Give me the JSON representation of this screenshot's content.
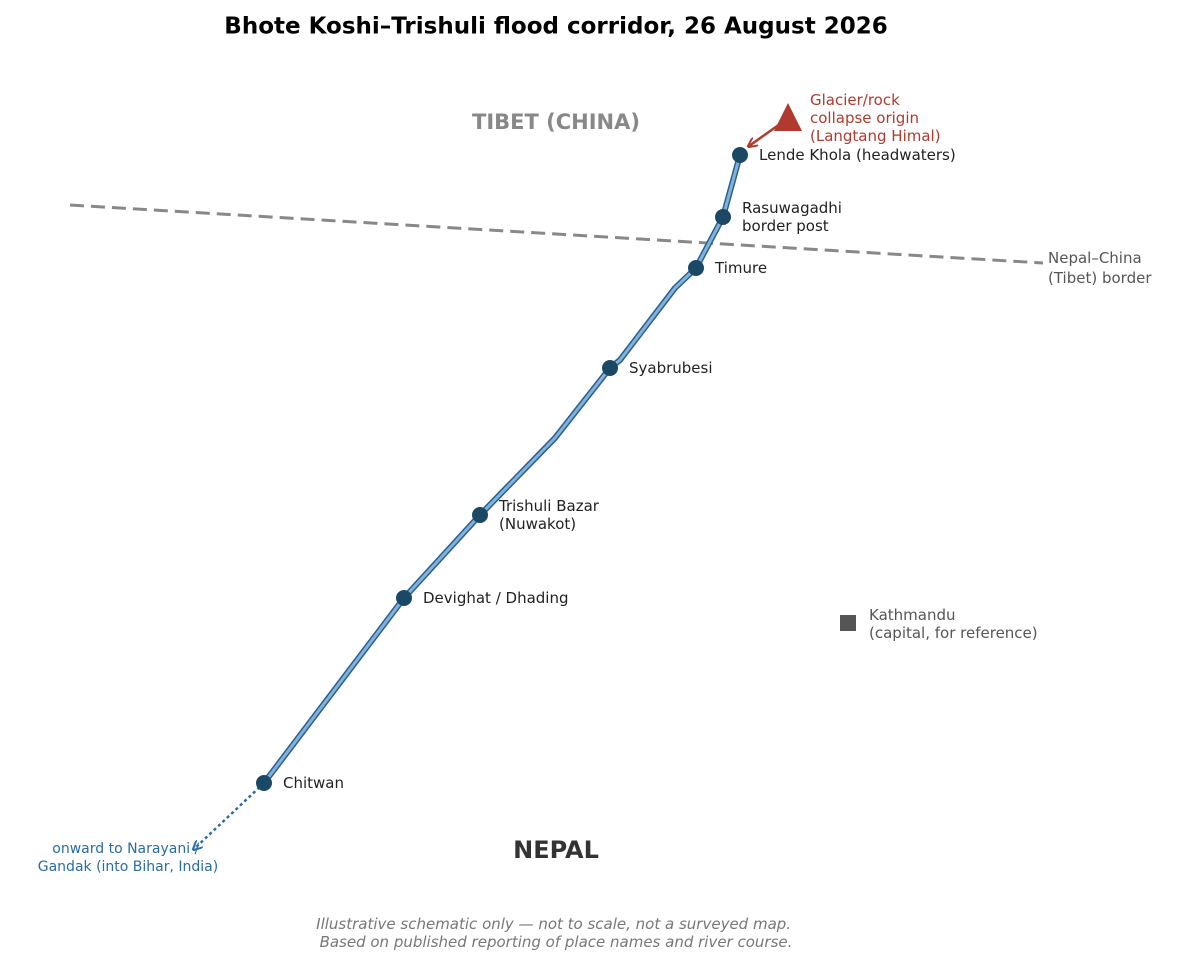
{
  "title": "Bhote Koshi–Trishuli flood corridor, 26 August 2026",
  "regions": {
    "tibet": "TIBET (CHINA)",
    "nepal": "NEPAL"
  },
  "border_label": [
    "Nepal–China",
    "(Tibet) border"
  ],
  "origin_label": [
    "Glacier/rock",
    "collapse origin",
    "(Langtang Himal)"
  ],
  "places": [
    [
      "Lende Khola (headwaters)"
    ],
    [
      "Rasuwagadhi",
      "border post"
    ],
    [
      "Timure"
    ],
    [
      "Syabrubesi"
    ],
    [
      "Trishuli Bazar",
      "(Nuwakot)"
    ],
    [
      "Devighat / Dhading"
    ],
    [
      "Chitwan"
    ]
  ],
  "onward_label": [
    "onward to Narayani /",
    "Gandak (into Bihar, India)"
  ],
  "capital_label": [
    "Kathmandu",
    "(capital, for reference)"
  ],
  "footnote": [
    "Illustrative schematic only — not to scale, not a surveyed map.",
    "Based on published reporting of place names and river course."
  ]
}
